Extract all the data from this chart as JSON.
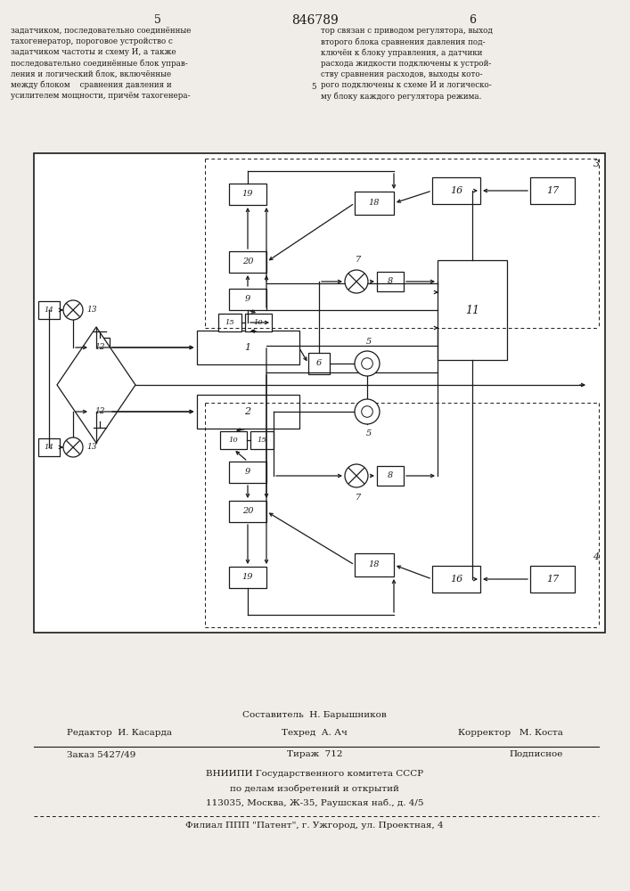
{
  "page_number_left": "5",
  "page_number_center": "846789",
  "page_number_right": "6",
  "footer_line1": "Составитель  Н. Барышников",
  "footer_line2_left": "Редактор  И. Касарда",
  "footer_line2_mid": "Техред  А. Ач",
  "footer_line2_right": "Корректор   М. Коста",
  "footer_line3_left": "Заказ 5427/49",
  "footer_line3_mid": "Тираж  712",
  "footer_line3_right": "Подписное",
  "footer_line4": "ВНИИПИ Государственного комитета СССР",
  "footer_line5": "по делам изобретений и открытий",
  "footer_line6": "113035, Москва, Ж-35, Раушская наб., д. 4/5",
  "footer_line7": "Филиал ППП \"Патент\", г. Ужгород, ул. Проектная, 4",
  "bg_color": "#f0ede8",
  "line_color": "#1a1a1a",
  "text_left_col": "задатчиком, последовательно соединённые\nтахогенератор, пороговое устройство с\nзадатчиком частоты и схему И, а также\nпоследовательно соединённые блок управ-\nления и логический блок, включённые\nмежду блоком    сравнения давления и\nусилителем мощности, причём тахогенера-",
  "text_right_col": "тор связан с приводом регулятора, выход\nвторого блока сравнения давления под-\nключён к блоку управления, а датчики\nрасхода жидкости подключены к устрой-\nству сравнения расходов, выходы кото-\nрого подключены к схеме И и логическо-\nму блоку каждого регулятора режима."
}
